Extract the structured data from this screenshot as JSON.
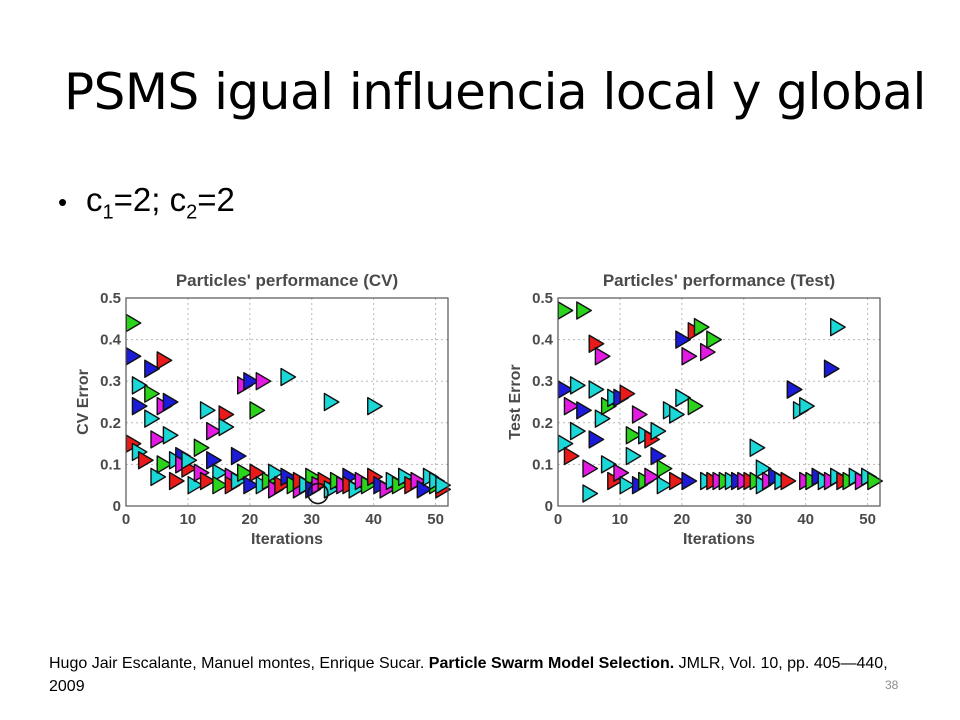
{
  "slide": {
    "title": "PSMS igual influencia local y global",
    "bullet": {
      "c1_base": "c",
      "c1_sub": "1",
      "c1_rest": "=2; ",
      "c2_base": "c",
      "c2_sub": "2",
      "c2_rest": "=2"
    },
    "footer": {
      "authors": "Hugo Jair Escalante, Manuel montes, Enrique Sucar. ",
      "paper_title": "Particle Swarm Model Selection.",
      "venue": " JMLR, Vol. 10, pp. 405—440, 2009"
    },
    "slide_number": "38"
  },
  "chart_data": [
    {
      "type": "scatter",
      "title": "Particles' performance (CV)",
      "xlabel": "Iterations",
      "ylabel": "CV Error",
      "xlim": [
        0,
        52
      ],
      "ylim": [
        0,
        0.5
      ],
      "x_ticks": [
        0,
        10,
        20,
        30,
        40,
        50
      ],
      "y_ticks": [
        0,
        0.1,
        0.2,
        0.3,
        0.4,
        0.5
      ],
      "grid": true,
      "marker": "right-triangle",
      "colors": [
        "#1b1bd8",
        "#e81a1a",
        "#2ad41a",
        "#e21ae2",
        "#1ad8d8"
      ],
      "highlight": {
        "x": 31,
        "y": 0.03
      },
      "points": [
        [
          1,
          0.44,
          2
        ],
        [
          1,
          0.36,
          0
        ],
        [
          1,
          0.15,
          1
        ],
        [
          2,
          0.13,
          4
        ],
        [
          2,
          0.29,
          4
        ],
        [
          2,
          0.24,
          0
        ],
        [
          3,
          0.11,
          1
        ],
        [
          4,
          0.33,
          0
        ],
        [
          4,
          0.27,
          2
        ],
        [
          4,
          0.21,
          4
        ],
        [
          5,
          0.16,
          3
        ],
        [
          5,
          0.07,
          4
        ],
        [
          6,
          0.35,
          1
        ],
        [
          6,
          0.24,
          3
        ],
        [
          6,
          0.1,
          2
        ],
        [
          7,
          0.25,
          0
        ],
        [
          7,
          0.17,
          4
        ],
        [
          8,
          0.11,
          4
        ],
        [
          8,
          0.06,
          1
        ],
        [
          9,
          0.12,
          0
        ],
        [
          9,
          0.1,
          3
        ],
        [
          10,
          0.09,
          1
        ],
        [
          10,
          0.11,
          4
        ],
        [
          11,
          0.05,
          4
        ],
        [
          12,
          0.14,
          2
        ],
        [
          12,
          0.08,
          3
        ],
        [
          13,
          0.06,
          1
        ],
        [
          13,
          0.23,
          4
        ],
        [
          14,
          0.18,
          3
        ],
        [
          14,
          0.11,
          0
        ],
        [
          15,
          0.08,
          4
        ],
        [
          15,
          0.05,
          2
        ],
        [
          16,
          0.22,
          1
        ],
        [
          16,
          0.19,
          4
        ],
        [
          17,
          0.07,
          3
        ],
        [
          17,
          0.05,
          1
        ],
        [
          18,
          0.12,
          0
        ],
        [
          18,
          0.06,
          4
        ],
        [
          19,
          0.29,
          3
        ],
        [
          19,
          0.08,
          2
        ],
        [
          20,
          0.05,
          0
        ],
        [
          20,
          0.3,
          0
        ],
        [
          21,
          0.08,
          1
        ],
        [
          21,
          0.23,
          2
        ],
        [
          22,
          0.05,
          4
        ],
        [
          22,
          0.3,
          3
        ],
        [
          23,
          0.06,
          2
        ],
        [
          24,
          0.08,
          4
        ],
        [
          24,
          0.04,
          3
        ],
        [
          25,
          0.05,
          1
        ],
        [
          26,
          0.31,
          4
        ],
        [
          26,
          0.07,
          0
        ],
        [
          27,
          0.05,
          2
        ],
        [
          28,
          0.04,
          3
        ],
        [
          28,
          0.06,
          1
        ],
        [
          29,
          0.05,
          4
        ],
        [
          30,
          0.07,
          2
        ],
        [
          30,
          0.04,
          0
        ],
        [
          31,
          0.05,
          3
        ],
        [
          32,
          0.06,
          1
        ],
        [
          33,
          0.04,
          4
        ],
        [
          33,
          0.25,
          4
        ],
        [
          34,
          0.06,
          2
        ],
        [
          35,
          0.05,
          3
        ],
        [
          36,
          0.07,
          0
        ],
        [
          36,
          0.05,
          1
        ],
        [
          37,
          0.04,
          4
        ],
        [
          38,
          0.06,
          3
        ],
        [
          39,
          0.05,
          2
        ],
        [
          40,
          0.24,
          4
        ],
        [
          40,
          0.07,
          1
        ],
        [
          41,
          0.05,
          0
        ],
        [
          42,
          0.04,
          3
        ],
        [
          43,
          0.06,
          4
        ],
        [
          44,
          0.05,
          2
        ],
        [
          45,
          0.07,
          4
        ],
        [
          46,
          0.05,
          1
        ],
        [
          47,
          0.06,
          3
        ],
        [
          48,
          0.04,
          0
        ],
        [
          49,
          0.07,
          4
        ],
        [
          50,
          0.05,
          2
        ],
        [
          50,
          0.06,
          4
        ],
        [
          51,
          0.04,
          1
        ],
        [
          51,
          0.05,
          4
        ]
      ]
    },
    {
      "type": "scatter",
      "title": "Particles' performance (Test)",
      "xlabel": "Iterations",
      "ylabel": "Test Error",
      "xlim": [
        0,
        52
      ],
      "ylim": [
        0,
        0.5
      ],
      "x_ticks": [
        0,
        10,
        20,
        30,
        40,
        50
      ],
      "y_ticks": [
        0,
        0.1,
        0.2,
        0.3,
        0.4,
        0.5
      ],
      "grid": true,
      "marker": "right-triangle",
      "colors": [
        "#1b1bd8",
        "#e81a1a",
        "#2ad41a",
        "#e21ae2",
        "#1ad8d8"
      ],
      "points": [
        [
          1,
          0.47,
          2
        ],
        [
          1,
          0.28,
          0
        ],
        [
          1,
          0.15,
          4
        ],
        [
          2,
          0.12,
          1
        ],
        [
          2,
          0.24,
          3
        ],
        [
          3,
          0.29,
          4
        ],
        [
          3,
          0.18,
          4
        ],
        [
          4,
          0.23,
          0
        ],
        [
          4,
          0.47,
          2
        ],
        [
          5,
          0.09,
          3
        ],
        [
          5,
          0.03,
          4
        ],
        [
          6,
          0.28,
          4
        ],
        [
          6,
          0.16,
          0
        ],
        [
          6,
          0.39,
          1
        ],
        [
          7,
          0.36,
          3
        ],
        [
          7,
          0.21,
          4
        ],
        [
          8,
          0.1,
          4
        ],
        [
          8,
          0.24,
          2
        ],
        [
          9,
          0.06,
          1
        ],
        [
          9,
          0.26,
          4
        ],
        [
          10,
          0.26,
          0
        ],
        [
          10,
          0.08,
          3
        ],
        [
          11,
          0.27,
          1
        ],
        [
          11,
          0.05,
          4
        ],
        [
          12,
          0.17,
          2
        ],
        [
          12,
          0.12,
          4
        ],
        [
          13,
          0.05,
          0
        ],
        [
          13,
          0.22,
          3
        ],
        [
          14,
          0.17,
          4
        ],
        [
          14,
          0.06,
          2
        ],
        [
          15,
          0.16,
          1
        ],
        [
          15,
          0.07,
          3
        ],
        [
          16,
          0.18,
          4
        ],
        [
          16,
          0.12,
          0
        ],
        [
          17,
          0.05,
          4
        ],
        [
          17,
          0.09,
          2
        ],
        [
          18,
          0.23,
          4
        ],
        [
          19,
          0.22,
          4
        ],
        [
          19,
          0.06,
          1
        ],
        [
          20,
          0.4,
          0
        ],
        [
          20,
          0.26,
          4
        ],
        [
          21,
          0.36,
          3
        ],
        [
          21,
          0.06,
          0
        ],
        [
          22,
          0.24,
          2
        ],
        [
          22,
          0.42,
          1
        ],
        [
          23,
          0.43,
          2
        ],
        [
          24,
          0.06,
          4
        ],
        [
          24,
          0.37,
          3
        ],
        [
          25,
          0.4,
          2
        ],
        [
          25,
          0.06,
          1
        ],
        [
          26,
          0.06,
          3
        ],
        [
          27,
          0.06,
          2
        ],
        [
          28,
          0.06,
          4
        ],
        [
          29,
          0.06,
          0
        ],
        [
          30,
          0.06,
          3
        ],
        [
          31,
          0.06,
          1
        ],
        [
          32,
          0.06,
          2
        ],
        [
          32,
          0.14,
          4
        ],
        [
          33,
          0.05,
          4
        ],
        [
          33,
          0.09,
          4
        ],
        [
          34,
          0.06,
          3
        ],
        [
          35,
          0.07,
          0
        ],
        [
          36,
          0.06,
          4
        ],
        [
          37,
          0.06,
          1
        ],
        [
          38,
          0.28,
          4
        ],
        [
          38,
          0.28,
          0
        ],
        [
          39,
          0.23,
          4
        ],
        [
          40,
          0.24,
          4
        ],
        [
          40,
          0.06,
          3
        ],
        [
          41,
          0.06,
          2
        ],
        [
          42,
          0.07,
          0
        ],
        [
          43,
          0.06,
          4
        ],
        [
          44,
          0.33,
          0
        ],
        [
          44,
          0.06,
          3
        ],
        [
          45,
          0.43,
          4
        ],
        [
          45,
          0.07,
          4
        ],
        [
          46,
          0.06,
          1
        ],
        [
          47,
          0.06,
          2
        ],
        [
          48,
          0.07,
          4
        ],
        [
          49,
          0.06,
          3
        ],
        [
          50,
          0.07,
          4
        ],
        [
          51,
          0.06,
          2
        ]
      ]
    }
  ]
}
